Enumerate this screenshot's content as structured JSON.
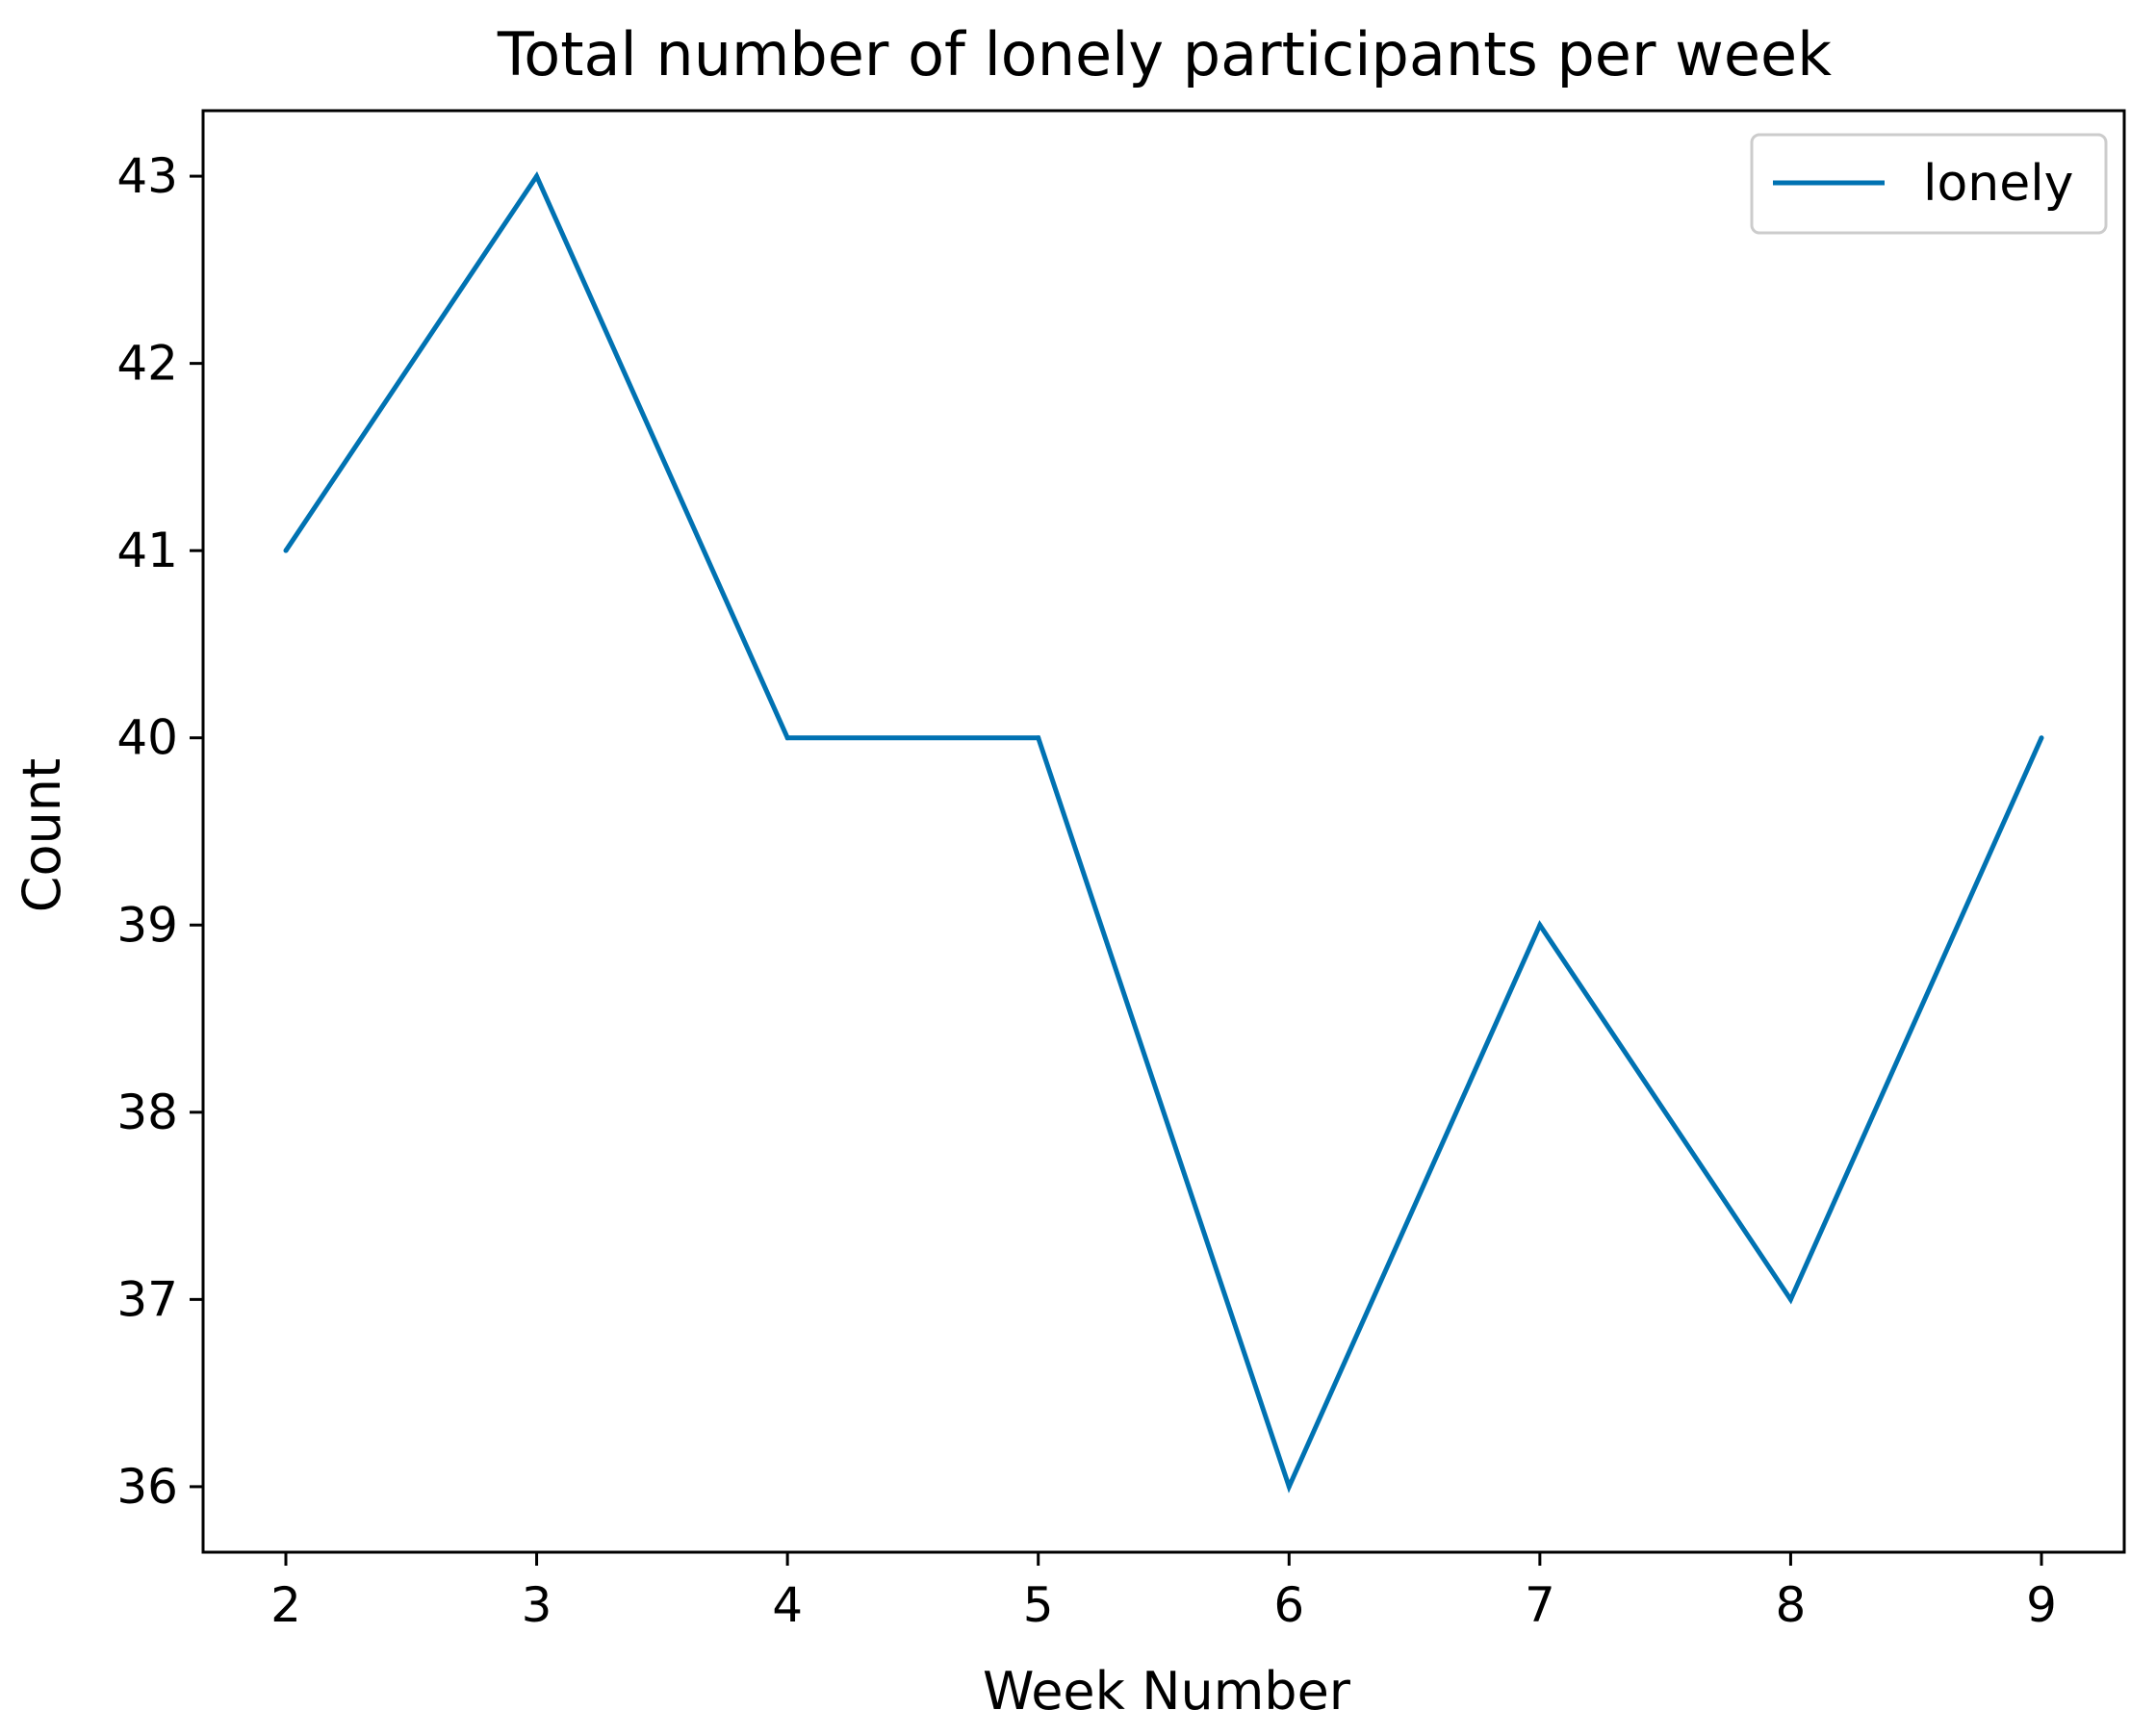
{
  "chart_data": {
    "type": "line",
    "title": "Total number of lonely participants per week",
    "xlabel": "Week Number",
    "ylabel": "Count",
    "x": [
      2,
      3,
      4,
      5,
      6,
      7,
      8,
      9
    ],
    "xticks": [
      "2",
      "3",
      "4",
      "5",
      "6",
      "7",
      "8",
      "9"
    ],
    "yticks": [
      "36",
      "37",
      "38",
      "39",
      "40",
      "41",
      "42",
      "43"
    ],
    "xlim": [
      1.67,
      9.33
    ],
    "ylim": [
      35.65,
      43.35
    ],
    "series": [
      {
        "name": "lonely",
        "values": [
          41,
          43,
          40,
          40,
          36,
          39,
          37,
          40
        ],
        "color": "#0072b2"
      }
    ],
    "legend": "top-right",
    "grid": false
  }
}
